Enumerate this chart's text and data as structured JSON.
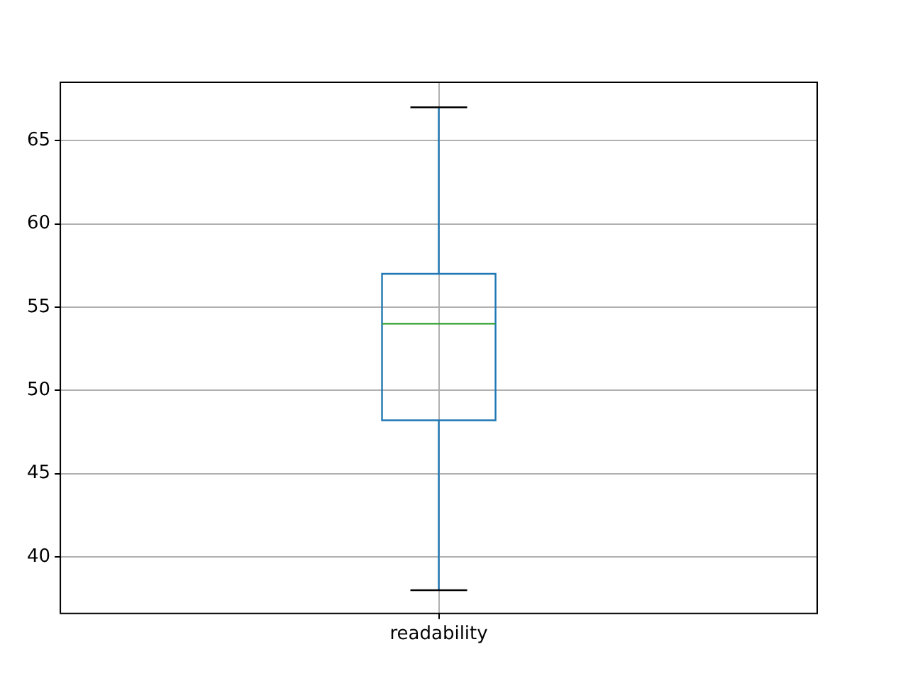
{
  "chart_data": {
    "type": "box",
    "categories": [
      "readability"
    ],
    "boxes": [
      {
        "low": 38,
        "q1": 48.2,
        "median": 54,
        "q3": 57,
        "high": 67
      }
    ],
    "color": "#1f77b4",
    "ylim": [
      36.6,
      68.5
    ],
    "yticks": [
      40,
      45,
      50,
      55,
      60,
      65
    ],
    "grid": true
  }
}
